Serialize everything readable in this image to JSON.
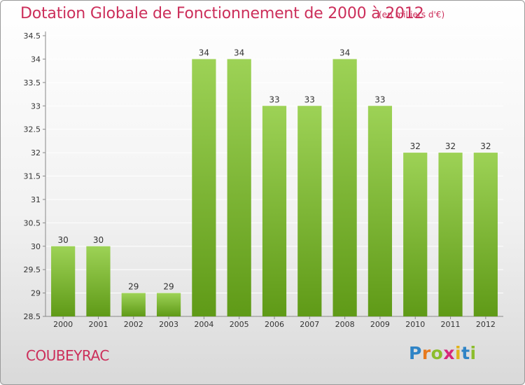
{
  "header": {
    "title": "Dotation Globale de Fonctionnement de 2000 à 2012",
    "subtitle": "(en milliers d'€)"
  },
  "footer": {
    "commune": "COUBEYRAC",
    "logo_text": "Proxiti"
  },
  "colors": {
    "bar_top": "#9dd256",
    "bar_bottom": "#5f9a17",
    "title": "#cc2e5a",
    "grid": "#ffffff",
    "axis": "#888888"
  },
  "chart_data": {
    "type": "bar",
    "title": "Dotation Globale de Fonctionnement de 2000 à 2012",
    "xlabel": "",
    "ylabel": "",
    "categories": [
      "2000",
      "2001",
      "2002",
      "2003",
      "2004",
      "2005",
      "2006",
      "2007",
      "2008",
      "2009",
      "2010",
      "2011",
      "2012"
    ],
    "values": [
      30,
      30,
      29,
      29,
      34,
      34,
      33,
      33,
      34,
      33,
      32,
      32,
      32
    ],
    "labels": [
      "30",
      "30",
      "29",
      "29",
      "34",
      "34",
      "33",
      "33",
      "34",
      "33",
      "32",
      "32",
      "32"
    ],
    "ylim": [
      28.5,
      34.5
    ],
    "yticks": [
      28.5,
      29,
      29.5,
      30,
      30.5,
      31,
      31.5,
      32,
      32.5,
      33,
      33.5,
      34,
      34.5
    ],
    "grid": true,
    "legend": "none"
  }
}
